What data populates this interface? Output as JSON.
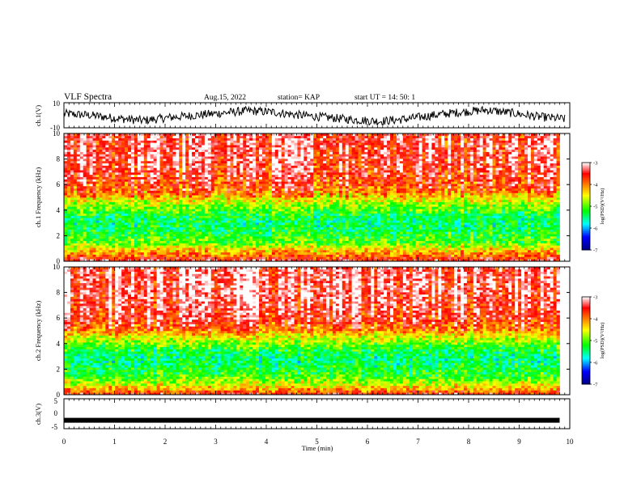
{
  "header": {
    "title": "VLF Spectra",
    "date": "Aug.15, 2022",
    "station": "station= KAP",
    "start": "start  UT =   14: 50: 1"
  },
  "colors": {
    "spectrogram_scale": [
      "#000080",
      "#0000ff",
      "#00ffff",
      "#00ff00",
      "#ffff00",
      "#ff8000",
      "#ff0000",
      "#ffffff"
    ],
    "trace": "#000000"
  },
  "chart_data": [
    {
      "type": "line",
      "ylabel": "ch.1(V)",
      "ylim": [
        -10,
        10
      ],
      "y_ticks": [
        "10",
        "-10"
      ],
      "xlim": [
        0,
        10
      ],
      "description_of_values": "noisy waveform roughly between -8 and 8 V",
      "sample_values": [
        2,
        0,
        -4,
        -7,
        -3,
        0,
        3,
        6,
        4,
        0,
        -3,
        -6,
        -8,
        -5,
        0,
        4,
        7,
        3,
        -2,
        -5
      ]
    },
    {
      "type": "heatmap",
      "ylabel": "ch.1\nFrequency (kHz)",
      "ylim": [
        0,
        10
      ],
      "y_ticks": [
        "0",
        "2",
        "4",
        "6",
        "8",
        "10"
      ],
      "xlim": [
        0,
        10
      ],
      "data_end_min": 9.8,
      "colorbar": {
        "label": "log(PSD)(V²/Hz)",
        "ticks": [
          "-3",
          "-4",
          "-5",
          "-6",
          "-7"
        ],
        "range": [
          -7,
          -3
        ]
      },
      "profile_freq_khz": [
        0,
        0.5,
        1.0,
        1.5,
        2.0,
        2.5,
        3.0,
        3.5,
        4.0,
        4.5,
        5.0,
        5.5,
        6.0,
        7.0,
        8.0,
        9.0,
        10.0
      ],
      "profile_logpsd": [
        -3.4,
        -4.0,
        -4.5,
        -5.1,
        -5.2,
        -5.4,
        -5.5,
        -5.4,
        -5.1,
        -4.8,
        -4.4,
        -4.0,
        -3.8,
        -3.6,
        -3.5,
        -3.5,
        -3.5
      ]
    },
    {
      "type": "heatmap",
      "ylabel": "ch.2\nFrequency (kHz)",
      "ylim": [
        0,
        10
      ],
      "y_ticks": [
        "0",
        "2",
        "4",
        "6",
        "8",
        "10"
      ],
      "xlim": [
        0,
        10
      ],
      "data_end_min": 9.8,
      "colorbar": {
        "label": "log(PSD)(V²/Hz)",
        "ticks": [
          "-3",
          "-4",
          "-5",
          "-6",
          "-7"
        ],
        "range": [
          -7,
          -3
        ]
      },
      "profile_freq_khz": [
        0,
        0.5,
        1.0,
        1.5,
        2.0,
        2.5,
        3.0,
        3.5,
        4.0,
        4.5,
        5.0,
        5.5,
        6.0,
        7.0,
        8.0,
        9.0,
        10.0
      ],
      "profile_logpsd": [
        -3.5,
        -4.3,
        -4.8,
        -5.2,
        -5.3,
        -5.5,
        -5.5,
        -5.3,
        -5.0,
        -4.6,
        -4.1,
        -3.8,
        -3.6,
        -3.5,
        -3.4,
        -3.4,
        -3.4
      ]
    },
    {
      "type": "line",
      "ylabel": "ch.3(V)",
      "ylim": [
        -5,
        5
      ],
      "y_ticks": [
        "5",
        "0",
        "-5"
      ],
      "xlim": [
        0,
        10
      ],
      "xlabel": "Time (min)",
      "x_ticks": [
        "0",
        "1",
        "2",
        "3",
        "4",
        "5",
        "6",
        "7",
        "8",
        "9",
        "10"
      ],
      "trace_level_v": -2.2,
      "trace_end_min": 9.8
    }
  ]
}
